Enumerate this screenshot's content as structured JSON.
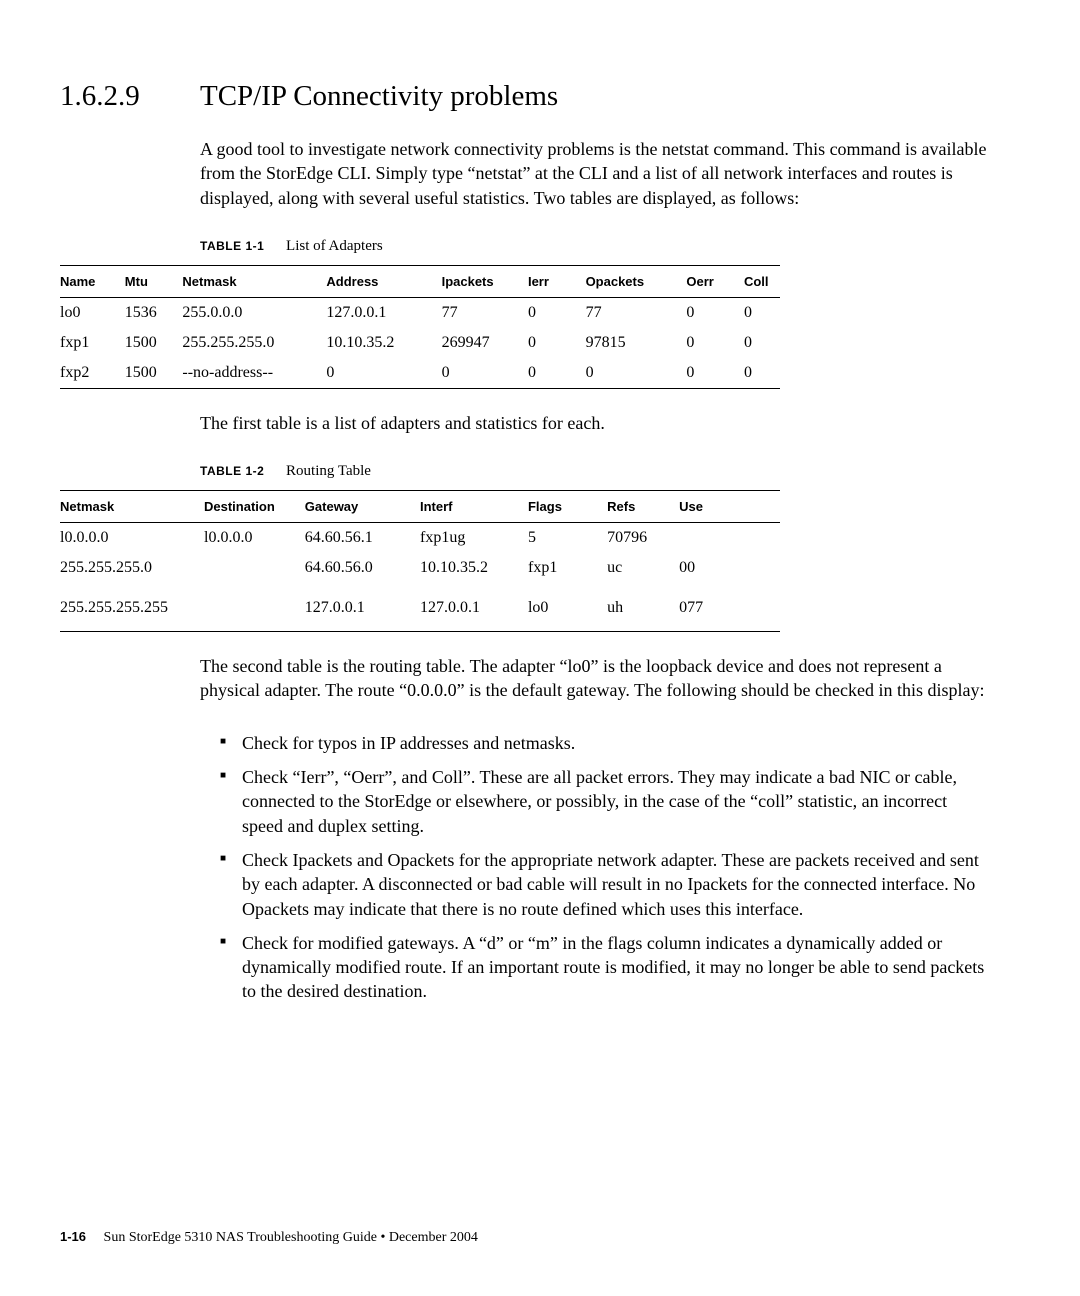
{
  "heading": {
    "number": "1.6.2.9",
    "title": "TCP/IP Connectivity problems"
  },
  "intro": "A good tool to investigate network connectivity problems is the netstat command. This command is available from the StorEdge CLI. Simply type “netstat” at the CLI and a list of all network interfaces and routes is displayed, along with several useful statistics. Two tables are displayed, as follows:",
  "table1": {
    "label": "TABLE 1-1",
    "caption": "List of Adapters",
    "columns": [
      "Name",
      "Mtu",
      "Netmask",
      "Address",
      "Ipackets",
      "Ierr",
      "Opackets",
      "Oerr",
      "Coll"
    ],
    "col_widths_pct": [
      9,
      8,
      20,
      16,
      12,
      8,
      14,
      8,
      5
    ],
    "rows": [
      [
        "lo0",
        "1536",
        "255.0.0.0",
        "127.0.0.1",
        "77",
        "0",
        "77",
        "0",
        "0"
      ],
      [
        "fxp1",
        "1500",
        "255.255.255.0",
        "10.10.35.2",
        "269947",
        "0",
        "97815",
        "0",
        "0"
      ],
      [
        "fxp2",
        "1500",
        "--no-address--",
        "0",
        "0",
        "0",
        "0",
        "0",
        "0"
      ]
    ]
  },
  "after_table1": "The first table is a list of adapters and statistics for each.",
  "table2": {
    "label": "TABLE 1-2",
    "caption": "Routing Table",
    "columns": [
      "Netmask",
      "Destination",
      "Gateway",
      "Interf",
      "Flags",
      "Refs",
      "Use"
    ],
    "col_widths_pct": [
      20,
      14,
      16,
      15,
      11,
      10,
      14
    ],
    "rows": [
      [
        "l0.0.0.0",
        "l0.0.0.0",
        "64.60.56.1",
        "fxp1ug",
        "5",
        "70796",
        ""
      ],
      [
        "255.255.255.0",
        "",
        "64.60.56.0",
        "10.10.35.2",
        "fxp1",
        "uc",
        "00"
      ],
      [
        "255.255.255.255",
        "",
        "127.0.0.1",
        "127.0.0.1",
        "lo0",
        "uh",
        "077"
      ]
    ]
  },
  "after_table2": "The second table is the routing table. The adapter “lo0” is the loopback device and does not represent a physical adapter. The route “0.0.0.0” is the default gateway. The following should be checked in this display:",
  "bullets": [
    "Check for typos in IP addresses and netmasks.",
    "Check “Ierr”, “Oerr”, and Coll”. These are all packet errors. They may indicate a bad NIC or cable, connected to the StorEdge or elsewhere, or possibly, in the case of the “coll” statistic, an incorrect speed and duplex setting.",
    "Check Ipackets and Opackets for the appropriate network adapter. These are packets received and sent by each adapter. A disconnected or bad cable will result in no Ipackets for the connected interface. No Opackets may indicate that there is no route defined which uses this interface.",
    "Check for modified gateways. A “d” or “m” in the flags column indicates a dynamically added or dynamically modified route. If an important route is modified, it may no longer be able to send packets to the desired destination."
  ],
  "footer": {
    "page": "1-16",
    "text": "Sun StorEdge 5310 NAS Troubleshooting Guide • December 2004"
  }
}
